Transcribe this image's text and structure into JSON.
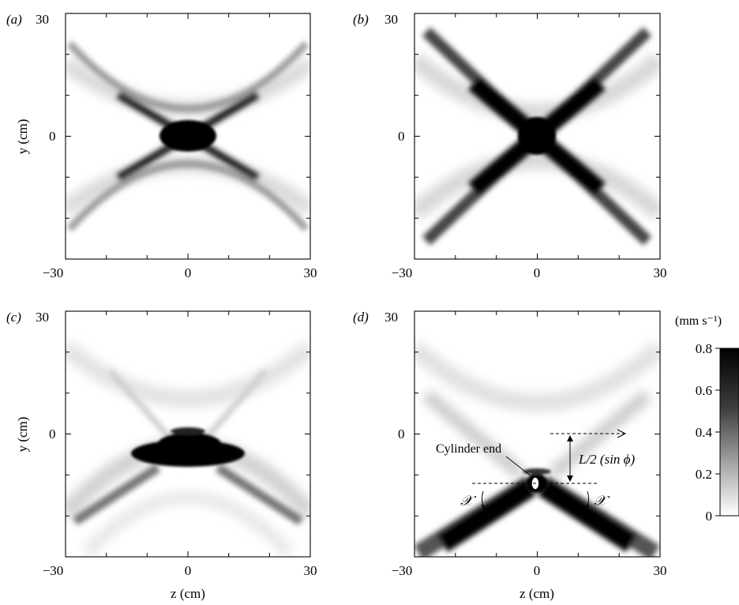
{
  "chart_data": [
    {
      "type": "heatmap",
      "panel_label": "(a)",
      "xlabel": "",
      "ylabel": "y (cm)",
      "xlim": [
        -30,
        30
      ],
      "ylim": [
        -30,
        30
      ],
      "x_ticks": [
        "−30",
        "0",
        "30"
      ],
      "y_ticks": [
        "30",
        "0"
      ],
      "pattern": {
        "center": [
          0,
          0
        ],
        "type": "cross",
        "core_shape": "flattened-ellipse"
      }
    },
    {
      "type": "heatmap",
      "panel_label": "(b)",
      "xlabel": "",
      "ylabel": "",
      "xlim": [
        -30,
        30
      ],
      "ylim": [
        -30,
        30
      ],
      "x_ticks": [
        "−30",
        "0",
        "30"
      ],
      "y_ticks": [
        "30",
        "0"
      ],
      "pattern": {
        "center": [
          0,
          0
        ],
        "type": "cross",
        "core_shape": "x-shaped"
      }
    },
    {
      "type": "heatmap",
      "panel_label": "(c)",
      "xlabel": "z (cm)",
      "ylabel": "y (cm)",
      "xlim": [
        -30,
        30
      ],
      "ylim": [
        -30,
        30
      ],
      "x_ticks": [
        "−30",
        "0",
        "30"
      ],
      "y_ticks": [
        "30",
        "0"
      ],
      "pattern": {
        "center": [
          0,
          -13
        ],
        "type": "cross",
        "core_shape": "lens"
      }
    },
    {
      "type": "heatmap",
      "panel_label": "(d)",
      "xlabel": "z (cm)",
      "ylabel": "",
      "xlim": [
        -30,
        30
      ],
      "ylim": [
        -30,
        30
      ],
      "x_ticks": [
        "−30",
        "0",
        "30"
      ],
      "y_ticks": [
        "30",
        "0"
      ],
      "pattern": {
        "center": [
          0,
          -12
        ],
        "type": "cross",
        "core_shape": "downward-v"
      },
      "annotations": {
        "cylinder_end": "Cylinder end",
        "height_label": "L/2 (sin ϕ)",
        "chi_left": "𝒳",
        "chi_right": "𝒳"
      }
    }
  ],
  "colorbar": {
    "unit_label": "(mm s⁻¹)",
    "min": 0,
    "max": 0.8,
    "ticks": [
      "0.8",
      "0.6",
      "0.4",
      "0.2",
      "0"
    ],
    "tick_values": [
      0.8,
      0.6,
      0.4,
      0.2,
      0
    ],
    "colors": {
      "low": "#ffffff",
      "high": "#000000"
    }
  }
}
